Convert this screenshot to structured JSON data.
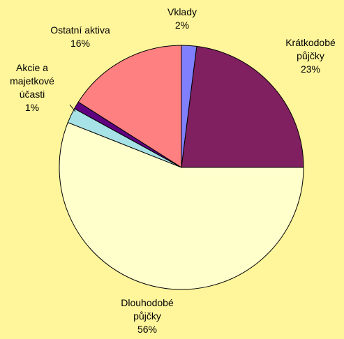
{
  "chart_data": {
    "type": "pie",
    "categories": [
      "Vklady",
      "Krátkodobé půjčky",
      "Dlouhodobé půjčky",
      null,
      "Akcie a majetkové účasti",
      "Ostatní aktiva"
    ],
    "values": [
      2,
      23,
      56,
      2,
      1,
      16
    ],
    "value_labels": [
      "2%",
      "23%",
      "56%",
      null,
      "1%",
      "16%"
    ],
    "colors": [
      "#8080ff",
      "#802060",
      "#ffffcc",
      "#a6e2e6",
      "#600080",
      "#ff8080"
    ]
  }
}
